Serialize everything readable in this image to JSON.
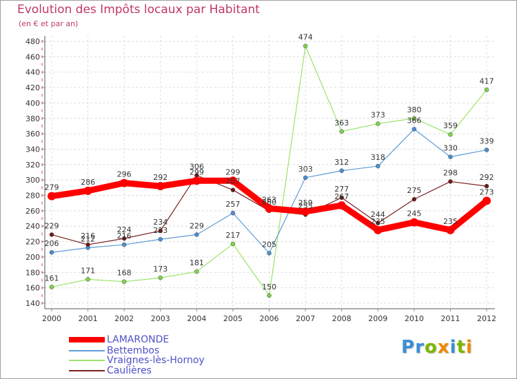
{
  "header": {
    "title": "Evolution des Impôts locaux par Habitant",
    "subtitle": "(en € et par an)"
  },
  "logo": {
    "text": "Proxiti",
    "letters": [
      {
        "ch": "P",
        "color": "#3a8fd6"
      },
      {
        "ch": "r",
        "color": "#3a8fd6"
      },
      {
        "ch": "o",
        "color": "#7ab800"
      },
      {
        "ch": "x",
        "color": "#f08a00"
      },
      {
        "ch": "i",
        "color": "#3a8fd6"
      },
      {
        "ch": "t",
        "color": "#7ab800"
      },
      {
        "ch": "i",
        "color": "#f08a00"
      }
    ]
  },
  "chart_data": {
    "type": "line",
    "title": "Evolution des Impôts locaux par Habitant",
    "subtitle": "(en € et par an)",
    "xlabel": "",
    "ylabel": "",
    "ylim": [
      140,
      480
    ],
    "yticks": [
      140,
      160,
      180,
      200,
      220,
      240,
      260,
      280,
      300,
      320,
      340,
      360,
      380,
      400,
      420,
      440,
      460,
      480
    ],
    "grid": true,
    "categories": [
      "2000",
      "2001",
      "2002",
      "2003",
      "2004",
      "2005",
      "2006",
      "2007",
      "2008",
      "2009",
      "2010",
      "2011",
      "2012"
    ],
    "series": [
      {
        "name": "LAMARONDE",
        "line_color": "#ff0000",
        "marker_color": "#ff0000",
        "thick": true,
        "values": [
          279,
          286,
          296,
          292,
          299,
          299,
          263,
          259,
          267,
          235,
          245,
          235,
          273
        ],
        "labels": [
          "279",
          "286",
          "296",
          "292",
          "299",
          "299",
          "263",
          "259",
          "267",
          "235",
          "245",
          "235",
          "273"
        ]
      },
      {
        "name": "Bettembos",
        "line_color": "#5b9bd5",
        "marker_color": "#4a8ed0",
        "thick": false,
        "values": [
          206,
          212,
          216,
          223,
          229,
          257,
          205,
          303,
          312,
          318,
          366,
          330,
          339
        ],
        "labels": [
          "206",
          "212",
          "216",
          "223",
          "229",
          "257",
          "205",
          "303",
          "312",
          "318",
          "366",
          "330",
          "339"
        ]
      },
      {
        "name": "Vraignes-lès-Hornoy",
        "line_color": "#9be36a",
        "marker_color": "#7ed348",
        "thick": false,
        "values": [
          161,
          171,
          168,
          173,
          181,
          217,
          150,
          474,
          363,
          373,
          380,
          359,
          417
        ],
        "labels": [
          "161",
          "171",
          "168",
          "173",
          "181",
          "217",
          "150",
          "474",
          "363",
          "373",
          "380",
          "359",
          "417"
        ]
      },
      {
        "name": "Caulières",
        "line_color": "#7a1f1f",
        "marker_color": "#6e1a1a",
        "thick": false,
        "values": [
          229,
          216,
          224,
          234,
          306,
          287,
          260,
          255,
          277,
          244,
          275,
          298,
          292
        ],
        "labels": [
          "229",
          "216",
          "224",
          "234",
          "306",
          "287",
          "260",
          "255",
          "277",
          "244",
          "275",
          "298",
          "292"
        ]
      }
    ],
    "legend": {
      "placement": "bottom-left",
      "text_color": "#5050c8"
    }
  }
}
